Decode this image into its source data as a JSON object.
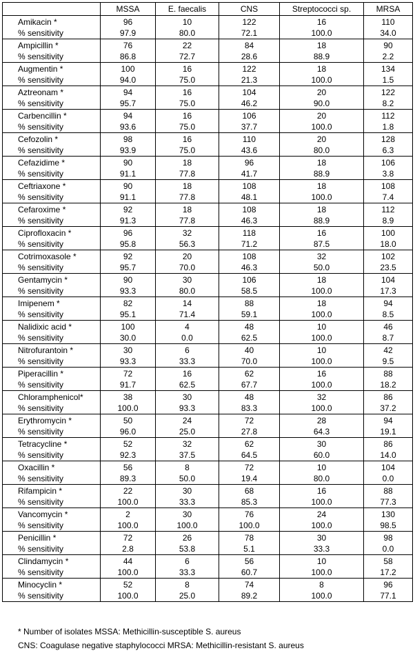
{
  "columns": [
    "",
    "MSSA",
    "E. faecalis",
    "CNS",
    "Streptococci sp.",
    "MRSA"
  ],
  "sensitivity_label": "% sensitivity",
  "rows": [
    {
      "drug": "Amikacin *",
      "isolates": [
        "96",
        "10",
        "122",
        "16",
        "110"
      ],
      "sensitivity": [
        "97.9",
        "80.0",
        "72.1",
        "100.0",
        "34.0"
      ]
    },
    {
      "drug": "Ampicillin *",
      "isolates": [
        "76",
        "22",
        "84",
        "18",
        "90"
      ],
      "sensitivity": [
        "86.8",
        "72.7",
        "28.6",
        "88.9",
        "2.2"
      ]
    },
    {
      "drug": "Augmentin *",
      "isolates": [
        "100",
        "16",
        "122",
        "18",
        "134"
      ],
      "sensitivity": [
        "94.0",
        "75.0",
        "21.3",
        "100.0",
        "1.5"
      ]
    },
    {
      "drug": "Aztreonam *",
      "isolates": [
        "94",
        "16",
        "104",
        "20",
        "122"
      ],
      "sensitivity": [
        "95.7",
        "75.0",
        "46.2",
        "90.0",
        "8.2"
      ]
    },
    {
      "drug": "Carbencillin *",
      "isolates": [
        "94",
        "16",
        "106",
        "20",
        "112"
      ],
      "sensitivity": [
        "93.6",
        "75.0",
        "37.7",
        "100.0",
        "1.8"
      ]
    },
    {
      "drug": "Cefozolin *",
      "isolates": [
        "98",
        "16",
        "110",
        "20",
        "128"
      ],
      "sensitivity": [
        "93.9",
        "75.0",
        "43.6",
        "80.0",
        "6.3"
      ]
    },
    {
      "drug": "Cefazidime *",
      "isolates": [
        "90",
        "18",
        "96",
        "18",
        "106"
      ],
      "sensitivity": [
        "91.1",
        "77.8",
        "41.7",
        "88.9",
        "3.8"
      ]
    },
    {
      "drug": "Ceftriaxone *",
      "isolates": [
        "90",
        "18",
        "108",
        "18",
        "108"
      ],
      "sensitivity": [
        "91.1",
        "77.8",
        "48.1",
        "100.0",
        "7.4"
      ]
    },
    {
      "drug": "Cefaroxime *",
      "isolates": [
        "92",
        "18",
        "108",
        "18",
        "112"
      ],
      "sensitivity": [
        "91.3",
        "77.8",
        "46.3",
        "88.9",
        "8.9"
      ]
    },
    {
      "drug": "Ciprofloxacin *",
      "isolates": [
        "96",
        "32",
        "118",
        "16",
        "100"
      ],
      "sensitivity": [
        "95.8",
        "56.3",
        "71.2",
        "87.5",
        "18.0"
      ]
    },
    {
      "drug": "Cotrimoxasole *",
      "isolates": [
        "92",
        "20",
        "108",
        "32",
        "102"
      ],
      "sensitivity": [
        "95.7",
        "70.0",
        "46.3",
        "50.0",
        "23.5"
      ]
    },
    {
      "drug": "Gentamycin *",
      "isolates": [
        "90",
        "30",
        "106",
        "18",
        "104"
      ],
      "sensitivity": [
        "93.3",
        "80.0",
        "58.5",
        "100.0",
        "17.3"
      ]
    },
    {
      "drug": "Imipenem *",
      "isolates": [
        "82",
        "14",
        "88",
        "18",
        "94"
      ],
      "sensitivity": [
        "95.1",
        "71.4",
        "59.1",
        "100.0",
        "8.5"
      ]
    },
    {
      "drug": "Nalidixic acid *",
      "isolates": [
        "100",
        "4",
        "48",
        "10",
        "46"
      ],
      "sensitivity": [
        "30.0",
        "0.0",
        "62.5",
        "100.0",
        "8.7"
      ]
    },
    {
      "drug": "Nitrofurantoin *",
      "isolates": [
        "30",
        "6",
        "40",
        "10",
        "42"
      ],
      "sensitivity": [
        "93.3",
        "33.3",
        "70.0",
        "100.0",
        "9.5"
      ]
    },
    {
      "drug": "Piperacillin *",
      "isolates": [
        "72",
        "16",
        "62",
        "16",
        "88"
      ],
      "sensitivity": [
        "91.7",
        "62.5",
        "67.7",
        "100.0",
        "18.2"
      ]
    },
    {
      "drug": "Chloramphenicol*",
      "isolates": [
        "38",
        "30",
        "48",
        "32",
        "86"
      ],
      "sensitivity": [
        "100.0",
        "93.3",
        "83.3",
        "100.0",
        "37.2"
      ]
    },
    {
      "drug": "Erythromycin *",
      "isolates": [
        "50",
        "24",
        "72",
        "28",
        "94"
      ],
      "sensitivity": [
        "96.0",
        "25.0",
        "27.8",
        "64.3",
        "19.1"
      ]
    },
    {
      "drug": "Tetracycline *",
      "isolates": [
        "52",
        "32",
        "62",
        "30",
        "86"
      ],
      "sensitivity": [
        "92.3",
        "37.5",
        "64.5",
        "60.0",
        "14.0"
      ]
    },
    {
      "drug": "Oxacillin *",
      "isolates": [
        "56",
        "8",
        "72",
        "10",
        "104"
      ],
      "sensitivity": [
        "89.3",
        "50.0",
        "19.4",
        "80.0",
        "0.0"
      ]
    },
    {
      "drug": "Rifampicin *",
      "isolates": [
        "22",
        "30",
        "68",
        "16",
        "88"
      ],
      "sensitivity": [
        "100.0",
        "33.3",
        "85.3",
        "100.0",
        "77.3"
      ]
    },
    {
      "drug": "Vancomycin *",
      "isolates": [
        "2",
        "30",
        "76",
        "24",
        "130"
      ],
      "sensitivity": [
        "100.0",
        "100.0",
        "100.0",
        "100.0",
        "98.5"
      ]
    },
    {
      "drug": "Penicillin *",
      "isolates": [
        "72",
        "26",
        "78",
        "30",
        "98"
      ],
      "sensitivity": [
        "2.8",
        "53.8",
        "5.1",
        "33.3",
        "0.0"
      ]
    },
    {
      "drug": "Clindamycin *",
      "isolates": [
        "44",
        "6",
        "56",
        "10",
        "58"
      ],
      "sensitivity": [
        "100.0",
        "33.3",
        "60.7",
        "100.0",
        "17.2"
      ]
    },
    {
      "drug": "Minocyclin *",
      "isolates": [
        "52",
        "8",
        "74",
        "8",
        "96"
      ],
      "sensitivity": [
        "100.0",
        "25.0",
        "89.2",
        "100.0",
        "77.1"
      ]
    }
  ],
  "footnotes": [
    "* Number of isolates  MSSA: Methicillin-susceptible S. aureus",
    "CNS: Coagulase negative staphylococci  MRSA: Methicillin-resistant S. aureus"
  ]
}
